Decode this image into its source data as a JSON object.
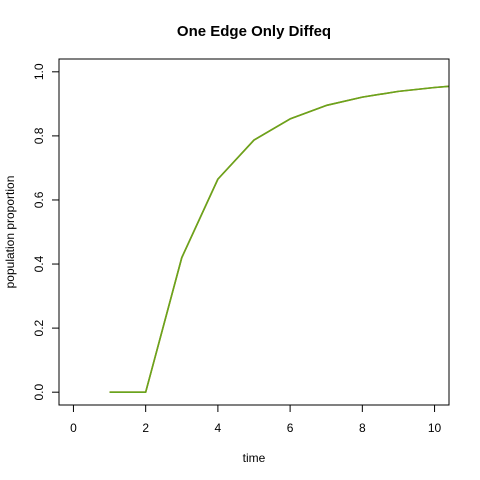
{
  "chart_data": {
    "type": "line",
    "title": "One Edge Only Diffeq",
    "xlabel": "time",
    "ylabel": "population proportion",
    "xlim": [
      -0.4,
      10.4
    ],
    "ylim": [
      -0.04,
      1.04
    ],
    "x_ticks": [
      "0",
      "2",
      "4",
      "6",
      "8",
      "10"
    ],
    "y_ticks": [
      "0.0",
      "0.2",
      "0.4",
      "0.6",
      "0.8",
      "1.0"
    ],
    "grid": false,
    "legend": "none",
    "series": [
      {
        "color": "#d95f02",
        "x": [
          1,
          2,
          3,
          4,
          5,
          6,
          7,
          8,
          9,
          10,
          11
        ],
        "values": [
          0.0,
          0.0,
          0.42,
          0.665,
          0.787,
          0.853,
          0.895,
          0.921,
          0.939,
          0.951,
          0.96
        ]
      },
      {
        "color": "#66a61e",
        "x": [
          1,
          2,
          3,
          4,
          5,
          6,
          7,
          8,
          9,
          10,
          11
        ],
        "values": [
          0.0,
          0.0,
          0.42,
          0.665,
          0.787,
          0.853,
          0.895,
          0.921,
          0.939,
          0.951,
          0.96
        ]
      }
    ]
  }
}
